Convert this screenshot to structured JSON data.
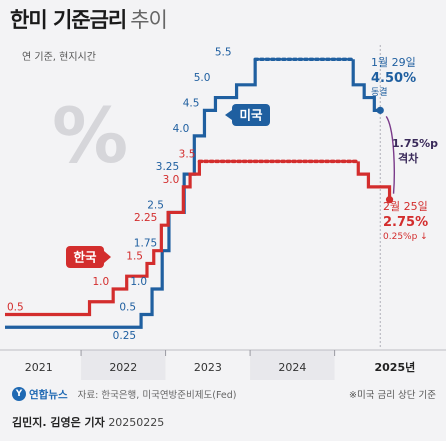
{
  "header": {
    "title_bold": "한미 기준금리",
    "title_light": "추이"
  },
  "chart_data": {
    "type": "line",
    "subtitle": "연 기준, 현지시간",
    "x_labels": [
      "2021",
      "2022",
      "2023",
      "2024",
      "2025년"
    ],
    "xlim": [
      2020.6,
      2025.25
    ],
    "ylim": [
      0.0,
      5.8
    ],
    "series": [
      {
        "name": "미국",
        "color": "#1f5fa0",
        "x": [
          2020.6,
          2022.21,
          2022.34,
          2022.46,
          2022.54,
          2022.72,
          2022.84,
          2022.96,
          2023.09,
          2023.34,
          2023.56,
          2024.72,
          2024.85,
          2024.97,
          2025.04
        ],
        "y": [
          0.25,
          0.5,
          1.0,
          1.75,
          2.5,
          3.25,
          4.0,
          4.5,
          4.75,
          5.0,
          5.5,
          5.0,
          4.75,
          4.5,
          4.5
        ],
        "labels": [
          {
            "x": 2022.21,
            "y": 0.25,
            "text": "0.25"
          },
          {
            "x": 2022.21,
            "y": 0.5,
            "text": "0.5"
          },
          {
            "x": 2022.34,
            "y": 1.0,
            "text": "1.0"
          },
          {
            "x": 2022.46,
            "y": 1.75,
            "text": "1.75"
          },
          {
            "x": 2022.54,
            "y": 2.5,
            "text": "2.5"
          },
          {
            "x": 2022.72,
            "y": 3.25,
            "text": "3.25"
          },
          {
            "x": 2022.84,
            "y": 4.0,
            "text": "4.0"
          },
          {
            "x": 2022.96,
            "y": 4.5,
            "text": "4.5"
          },
          {
            "x": 2023.09,
            "y": 5.0,
            "text": "5.0"
          },
          {
            "x": 2023.34,
            "y": 5.5,
            "text": "5.5"
          }
        ]
      },
      {
        "name": "한국",
        "color": "#d32d2d",
        "x": [
          2020.6,
          2021.6,
          2021.88,
          2022.04,
          2022.28,
          2022.36,
          2022.45,
          2022.53,
          2022.71,
          2022.79,
          2022.9,
          2023.04,
          2024.78,
          2024.9,
          2025.15
        ],
        "y": [
          0.5,
          0.75,
          1.0,
          1.25,
          1.5,
          1.75,
          2.25,
          2.5,
          3.0,
          3.25,
          3.5,
          3.5,
          3.25,
          3.0,
          2.75
        ],
        "labels": [
          {
            "x": 2020.6,
            "y": 0.5,
            "text": "0.5"
          },
          {
            "x": 2021.88,
            "y": 1.0,
            "text": "1.0"
          },
          {
            "x": 2022.28,
            "y": 1.5,
            "text": "1.5"
          },
          {
            "x": 2022.45,
            "y": 2.25,
            "text": "2.25"
          },
          {
            "x": 2022.71,
            "y": 3.0,
            "text": "3.0"
          },
          {
            "x": 2022.9,
            "y": 3.5,
            "text": "3.5"
          }
        ]
      }
    ],
    "annotations": {
      "us": {
        "date": "1월 29일",
        "rate": "4.50%",
        "status": "동결"
      },
      "kr": {
        "date": "2월 25일",
        "rate": "2.75%",
        "change": "0.25%p ↓"
      },
      "gap": {
        "value": "1.75%p",
        "label": "격차"
      }
    },
    "grid": false
  },
  "footer": {
    "logo": "연합뉴스",
    "source": "자료: 한국은행, 미국연방준비제도(Fed)",
    "note": "※미국 금리 상단 기준",
    "credit_name": "김민지. 김영은 기자",
    "credit_date": "20250225"
  }
}
